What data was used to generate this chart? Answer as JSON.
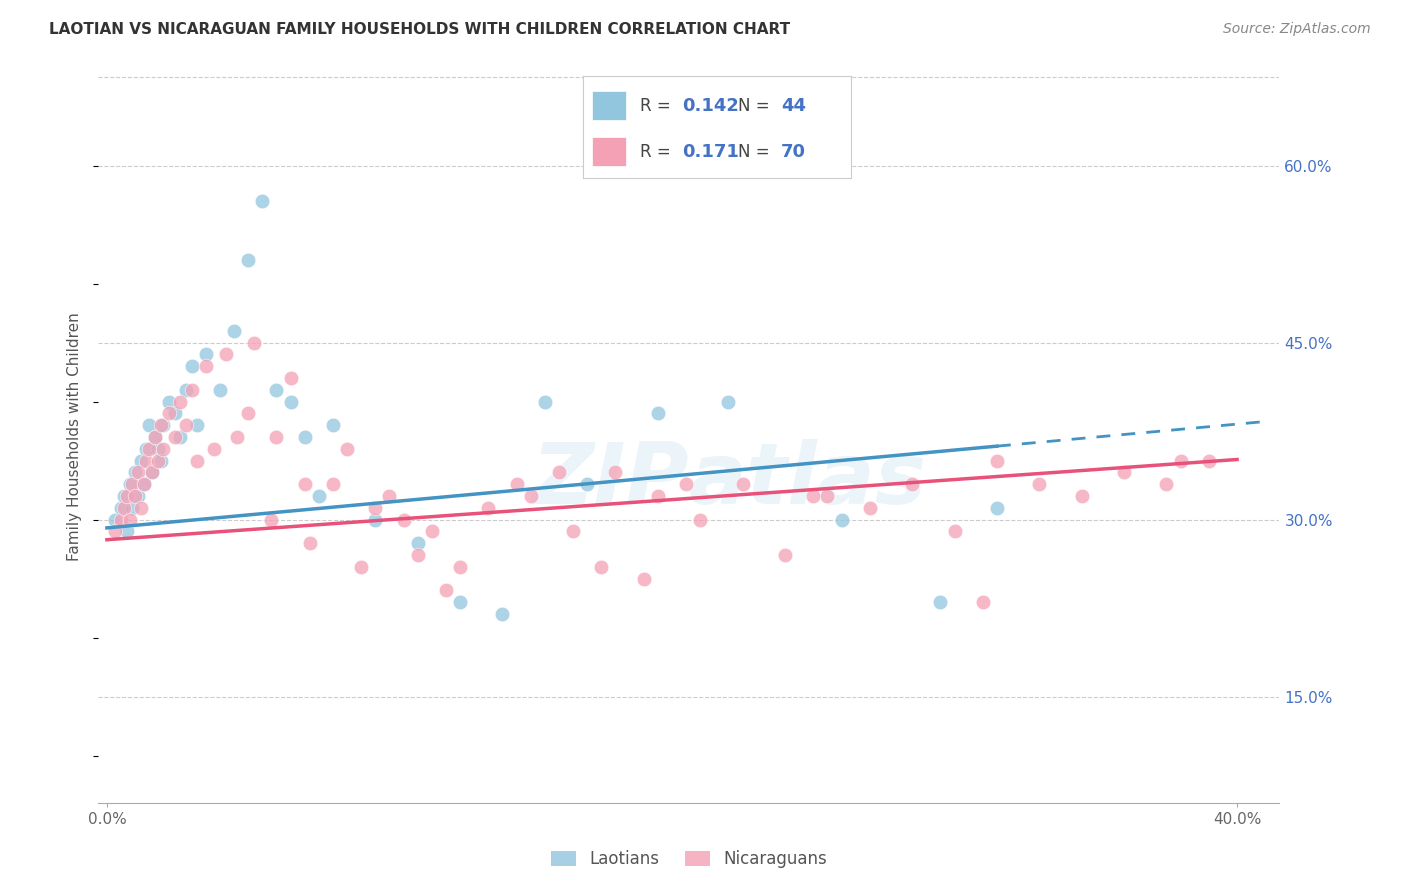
{
  "title": "LAOTIAN VS NICARAGUAN FAMILY HOUSEHOLDS WITH CHILDREN CORRELATION CHART",
  "source": "Source: ZipAtlas.com",
  "ylabel": "Family Households with Children",
  "ytick_vals": [
    0.6,
    0.45,
    0.3,
    0.15
  ],
  "ytick_labels": [
    "60.0%",
    "45.0%",
    "30.0%",
    "15.0%"
  ],
  "xlim": [
    -0.003,
    0.415
  ],
  "ylim": [
    0.06,
    0.68
  ],
  "laotian_color": "#92c5de",
  "nicaraguan_color": "#f4a0b5",
  "laotian_line_color": "#4393c3",
  "nicaraguan_line_color": "#e8527a",
  "background_color": "#ffffff",
  "grid_color": "#cccccc",
  "title_fontsize": 11,
  "source_fontsize": 10,
  "axis_label_fontsize": 11,
  "tick_fontsize": 11,
  "legend_r1_r": "0.142",
  "legend_r1_n": "44",
  "legend_r2_r": "0.171",
  "legend_r2_n": "70",
  "watermark_color": "#d0e8f5",
  "lao_x": [
    0.003,
    0.005,
    0.006,
    0.007,
    0.008,
    0.009,
    0.01,
    0.011,
    0.012,
    0.013,
    0.014,
    0.015,
    0.016,
    0.017,
    0.018,
    0.019,
    0.02,
    0.022,
    0.024,
    0.026,
    0.028,
    0.03,
    0.032,
    0.035,
    0.04,
    0.045,
    0.05,
    0.055,
    0.06,
    0.065,
    0.07,
    0.075,
    0.08,
    0.095,
    0.11,
    0.125,
    0.14,
    0.155,
    0.17,
    0.195,
    0.22,
    0.26,
    0.295,
    0.315
  ],
  "lao_y": [
    0.3,
    0.31,
    0.32,
    0.29,
    0.33,
    0.31,
    0.34,
    0.32,
    0.35,
    0.33,
    0.36,
    0.38,
    0.34,
    0.37,
    0.36,
    0.35,
    0.38,
    0.4,
    0.39,
    0.37,
    0.41,
    0.43,
    0.38,
    0.44,
    0.41,
    0.46,
    0.52,
    0.57,
    0.41,
    0.4,
    0.37,
    0.32,
    0.38,
    0.3,
    0.28,
    0.23,
    0.22,
    0.4,
    0.33,
    0.39,
    0.4,
    0.3,
    0.23,
    0.31
  ],
  "nic_x": [
    0.003,
    0.005,
    0.006,
    0.007,
    0.008,
    0.009,
    0.01,
    0.011,
    0.012,
    0.013,
    0.014,
    0.015,
    0.016,
    0.017,
    0.018,
    0.019,
    0.02,
    0.022,
    0.024,
    0.026,
    0.028,
    0.03,
    0.032,
    0.035,
    0.038,
    0.042,
    0.046,
    0.052,
    0.058,
    0.065,
    0.072,
    0.08,
    0.09,
    0.1,
    0.11,
    0.12,
    0.135,
    0.15,
    0.165,
    0.18,
    0.195,
    0.21,
    0.225,
    0.24,
    0.255,
    0.27,
    0.285,
    0.3,
    0.315,
    0.33,
    0.345,
    0.36,
    0.375,
    0.39,
    0.05,
    0.06,
    0.07,
    0.085,
    0.095,
    0.105,
    0.115,
    0.125,
    0.145,
    0.16,
    0.175,
    0.19,
    0.205,
    0.25,
    0.31,
    0.38
  ],
  "nic_y": [
    0.29,
    0.3,
    0.31,
    0.32,
    0.3,
    0.33,
    0.32,
    0.34,
    0.31,
    0.33,
    0.35,
    0.36,
    0.34,
    0.37,
    0.35,
    0.38,
    0.36,
    0.39,
    0.37,
    0.4,
    0.38,
    0.41,
    0.35,
    0.43,
    0.36,
    0.44,
    0.37,
    0.45,
    0.3,
    0.42,
    0.28,
    0.33,
    0.26,
    0.32,
    0.27,
    0.24,
    0.31,
    0.32,
    0.29,
    0.34,
    0.32,
    0.3,
    0.33,
    0.27,
    0.32,
    0.31,
    0.33,
    0.29,
    0.35,
    0.33,
    0.32,
    0.34,
    0.33,
    0.35,
    0.39,
    0.37,
    0.33,
    0.36,
    0.31,
    0.3,
    0.29,
    0.26,
    0.33,
    0.34,
    0.26,
    0.25,
    0.33,
    0.32,
    0.23,
    0.35
  ]
}
